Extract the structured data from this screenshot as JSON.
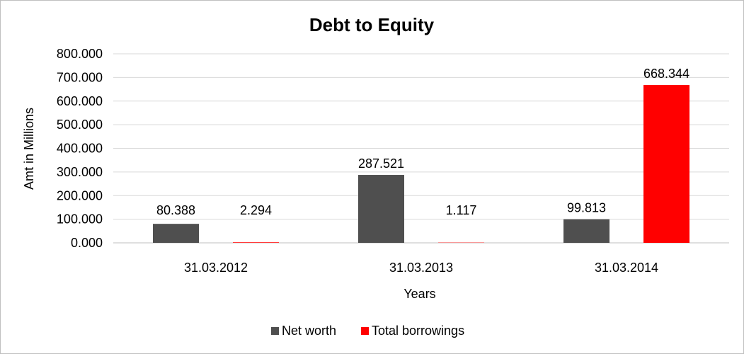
{
  "chart_data": {
    "type": "bar",
    "title": "Debt to Equity",
    "xlabel": "Years",
    "ylabel": "Amt in Millions",
    "categories": [
      "31.03.2012",
      "31.03.2013",
      "31.03.2014"
    ],
    "series": [
      {
        "name": "Net worth",
        "color": "#4f4f4f",
        "values": [
          80.388,
          287.521,
          99.813
        ],
        "labels": [
          "80.388",
          "287.521",
          "99.813"
        ]
      },
      {
        "name": "Total borrowings",
        "color": "#ff0000",
        "values": [
          2.294,
          1.117,
          668.344
        ],
        "labels": [
          "2.294",
          "1.117",
          "668.344"
        ]
      }
    ],
    "ylim": [
      0,
      800
    ],
    "yticks": [
      0,
      100,
      200,
      300,
      400,
      500,
      600,
      700,
      800
    ],
    "ytick_labels": [
      "0.000",
      "100.000",
      "200.000",
      "300.000",
      "400.000",
      "500.000",
      "600.000",
      "700.000",
      "800.000"
    ],
    "grid": true,
    "legend": "bottom"
  }
}
